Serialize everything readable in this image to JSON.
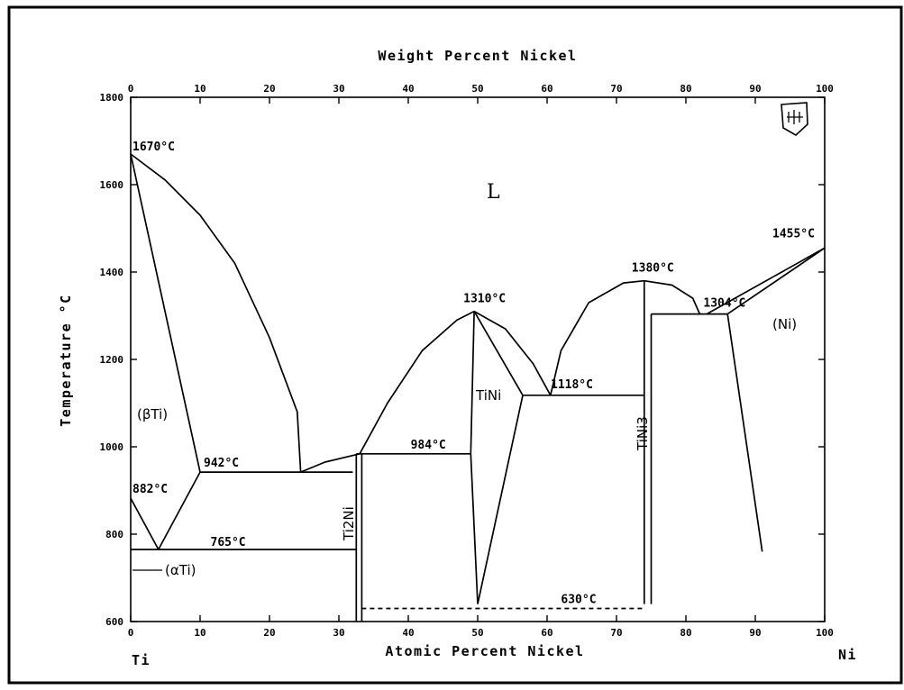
{
  "chart_data": {
    "type": "line",
    "title": "",
    "xlabel": "Atomic Percent Nickel",
    "x2label": "Weight Percent Nickel",
    "ylabel": "Temperature °C",
    "xlim": [
      0,
      100
    ],
    "ylim": [
      600,
      1800
    ],
    "grid": false,
    "x_ticks": [
      0,
      10,
      20,
      30,
      40,
      50,
      60,
      70,
      80,
      90,
      100
    ],
    "x2_ticks": [
      0,
      10,
      20,
      30,
      40,
      50,
      60,
      70,
      80,
      90,
      100
    ],
    "y_ticks": [
      600,
      800,
      1000,
      1200,
      1400,
      1600,
      1800
    ],
    "element_left": "Ti",
    "element_right": "Ni",
    "phase_labels": {
      "liquid": "L",
      "beta_ti": "(βTi)",
      "alpha_ti": "(αTi)",
      "ni": "(Ni)",
      "tini": "TiNi",
      "ti2ni": "Ti2Ni",
      "tini3": "TiNi3"
    },
    "annotations": [
      {
        "text": "1670°C",
        "x": 0,
        "y": 1670
      },
      {
        "text": "882°C",
        "x": 0,
        "y": 882
      },
      {
        "text": "942°C",
        "x": 10,
        "y": 942
      },
      {
        "text": "765°C",
        "x": 5,
        "y": 765
      },
      {
        "text": "984°C",
        "x": 38,
        "y": 984
      },
      {
        "text": "1310°C",
        "x": 49.5,
        "y": 1310
      },
      {
        "text": "1118°C",
        "x": 60,
        "y": 1118
      },
      {
        "text": "1380°C",
        "x": 74,
        "y": 1380
      },
      {
        "text": "1304°C",
        "x": 82,
        "y": 1304
      },
      {
        "text": "1455°C",
        "x": 100,
        "y": 1455
      },
      {
        "text": "630°C",
        "x": 62,
        "y": 630
      }
    ],
    "series": [
      {
        "key": "beta_liquidus",
        "points": [
          [
            0,
            1670
          ],
          [
            5,
            1610
          ],
          [
            10,
            1530
          ],
          [
            15,
            1420
          ],
          [
            20,
            1250
          ],
          [
            24,
            1080
          ],
          [
            24.5,
            942
          ]
        ]
      },
      {
        "key": "beta_solidus",
        "points": [
          [
            0,
            1670
          ],
          [
            10,
            942
          ]
        ]
      },
      {
        "key": "eutectic_942",
        "points": [
          [
            10,
            942
          ],
          [
            32,
            942
          ]
        ]
      },
      {
        "key": "beta_transus_left",
        "points": [
          [
            0,
            882
          ],
          [
            4,
            765
          ]
        ]
      },
      {
        "key": "beta_transus_right",
        "points": [
          [
            4,
            765
          ],
          [
            10,
            942
          ]
        ]
      },
      {
        "key": "eutectoid_765",
        "points": [
          [
            0,
            765
          ],
          [
            32.5,
            765
          ]
        ]
      },
      {
        "key": "liquidus_ti2ni",
        "points": [
          [
            24.5,
            942
          ],
          [
            28,
            965
          ],
          [
            33,
            984
          ]
        ]
      },
      {
        "key": "ti2ni_left",
        "points": [
          [
            32.5,
            600
          ],
          [
            32.5,
            984
          ]
        ]
      },
      {
        "key": "ti2ni_right",
        "points": [
          [
            33.3,
            600
          ],
          [
            33.3,
            984
          ]
        ]
      },
      {
        "key": "ti2ni_top",
        "points": [
          [
            32.5,
            984
          ],
          [
            33.3,
            984
          ]
        ]
      },
      {
        "key": "eutectic_984",
        "points": [
          [
            33.3,
            984
          ],
          [
            49,
            984
          ]
        ]
      },
      {
        "key": "liquidus_tini_left",
        "points": [
          [
            33,
            984
          ],
          [
            37,
            1100
          ],
          [
            42,
            1220
          ],
          [
            47,
            1290
          ],
          [
            49.5,
            1310
          ]
        ]
      },
      {
        "key": "tini_left_boundary",
        "points": [
          [
            49.5,
            1310
          ],
          [
            49,
            984
          ],
          [
            50,
            640
          ]
        ]
      },
      {
        "key": "tini_right_boundary",
        "points": [
          [
            49.5,
            1310
          ],
          [
            56.5,
            1118
          ],
          [
            50,
            640
          ]
        ]
      },
      {
        "key": "liquidus_tini_right",
        "points": [
          [
            49.5,
            1310
          ],
          [
            54,
            1270
          ],
          [
            58,
            1190
          ],
          [
            60.5,
            1118
          ]
        ]
      },
      {
        "key": "eutectic_1118",
        "points": [
          [
            56.5,
            1118
          ],
          [
            74,
            1118
          ]
        ]
      },
      {
        "key": "liquidus_tini3",
        "points": [
          [
            60.5,
            1118
          ],
          [
            62,
            1220
          ],
          [
            66,
            1330
          ],
          [
            71,
            1375
          ],
          [
            74,
            1380
          ]
        ]
      },
      {
        "key": "tini3_left",
        "points": [
          [
            74,
            640
          ],
          [
            74,
            1380
          ]
        ]
      },
      {
        "key": "tini3_right",
        "points": [
          [
            75,
            640
          ],
          [
            75,
            1304
          ]
        ]
      },
      {
        "key": "eutectoid_630",
        "points": [
          [
            33.3,
            630
          ],
          [
            74,
            630
          ]
        ],
        "dashed": true
      },
      {
        "key": "liquidus_tini3_right",
        "points": [
          [
            74,
            1380
          ],
          [
            78,
            1370
          ],
          [
            81,
            1340
          ],
          [
            82,
            1304
          ]
        ]
      },
      {
        "key": "eutectic_1304",
        "points": [
          [
            75,
            1304
          ],
          [
            86,
            1304
          ]
        ]
      },
      {
        "key": "ni_solvus",
        "points": [
          [
            86,
            1304
          ],
          [
            91,
            760
          ]
        ]
      },
      {
        "key": "ni_liquidus",
        "points": [
          [
            83,
            1304
          ],
          [
            100,
            1455
          ]
        ]
      },
      {
        "key": "ni_solidus",
        "points": [
          [
            86,
            1304
          ],
          [
            100,
            1455
          ]
        ]
      }
    ]
  }
}
